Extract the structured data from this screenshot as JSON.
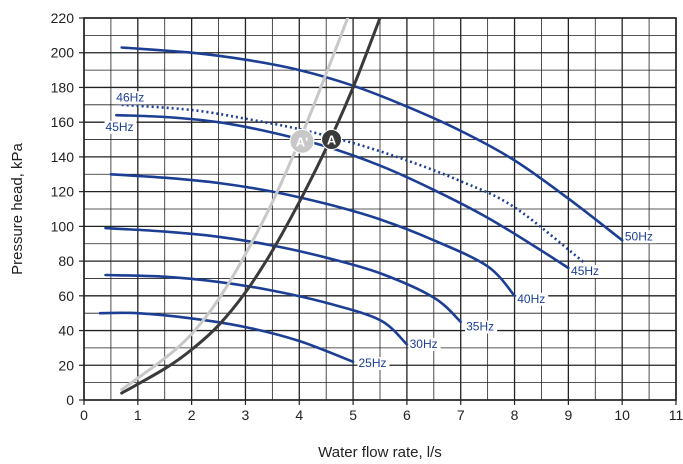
{
  "colors": {
    "grid": "#222222",
    "background": "#ffffff",
    "pump_curve": "#1c3f94",
    "system_curve_a": "#3a3a3a",
    "system_curve_a_prime": "#c8c8c8",
    "label_text": "#1c3f94"
  },
  "chart_data": {
    "type": "line",
    "xlabel": "Water flow rate, l/s",
    "ylabel": "Pressure head, kPa",
    "xlim": [
      0,
      11
    ],
    "ylim": [
      0,
      220
    ],
    "x_ticks": [
      "0",
      "1",
      "2",
      "3",
      "4",
      "5",
      "6",
      "7",
      "8",
      "9",
      "10",
      "11"
    ],
    "y_ticks": [
      "0",
      "20",
      "40",
      "60",
      "80",
      "100",
      "120",
      "140",
      "160",
      "180",
      "200",
      "220"
    ],
    "grid": true,
    "minor_grid_x": 0.5,
    "minor_grid_y": 10,
    "series": [
      {
        "name": "50Hz",
        "kind": "pump",
        "style": "solid",
        "points": [
          [
            0.7,
            203
          ],
          [
            2.0,
            200
          ],
          [
            3.0,
            196
          ],
          [
            4.0,
            190
          ],
          [
            5.0,
            181
          ],
          [
            6.0,
            169
          ],
          [
            7.0,
            155
          ],
          [
            8.0,
            138
          ],
          [
            9.0,
            116
          ],
          [
            10.0,
            92
          ]
        ]
      },
      {
        "name": "46Hz",
        "kind": "pump",
        "style": "dotted",
        "points": [
          [
            0.7,
            170
          ],
          [
            2.0,
            167
          ],
          [
            3.0,
            162
          ],
          [
            4.0,
            156
          ],
          [
            5.0,
            148
          ],
          [
            6.0,
            138
          ],
          [
            7.0,
            126
          ],
          [
            8.0,
            111
          ],
          [
            9.3,
            79
          ]
        ]
      },
      {
        "name": "45Hz",
        "kind": "pump",
        "style": "solid",
        "points": [
          [
            0.6,
            164
          ],
          [
            1.5,
            163
          ],
          [
            2.5,
            160
          ],
          [
            3.5,
            154
          ],
          [
            4.5,
            146
          ],
          [
            5.5,
            135
          ],
          [
            6.5,
            121
          ],
          [
            7.5,
            105
          ],
          [
            8.5,
            86
          ],
          [
            9.0,
            76
          ]
        ]
      },
      {
        "name": "40Hz",
        "kind": "pump",
        "style": "solid",
        "points": [
          [
            0.5,
            130
          ],
          [
            1.5,
            128
          ],
          [
            2.5,
            125
          ],
          [
            3.5,
            120
          ],
          [
            4.5,
            113
          ],
          [
            5.5,
            104
          ],
          [
            6.5,
            92
          ],
          [
            7.5,
            77
          ],
          [
            8.0,
            60
          ]
        ]
      },
      {
        "name": "35Hz",
        "kind": "pump",
        "style": "solid",
        "points": [
          [
            0.4,
            99
          ],
          [
            1.5,
            97
          ],
          [
            2.5,
            94
          ],
          [
            3.5,
            89
          ],
          [
            4.5,
            82
          ],
          [
            5.5,
            73
          ],
          [
            6.5,
            59
          ],
          [
            7.0,
            45
          ]
        ]
      },
      {
        "name": "30Hz",
        "kind": "pump",
        "style": "solid",
        "points": [
          [
            0.4,
            72
          ],
          [
            1.5,
            71
          ],
          [
            2.5,
            68
          ],
          [
            3.5,
            63
          ],
          [
            4.5,
            56
          ],
          [
            5.5,
            46
          ],
          [
            6.0,
            32
          ]
        ]
      },
      {
        "name": "25Hz",
        "kind": "pump",
        "style": "solid",
        "points": [
          [
            0.3,
            50
          ],
          [
            1.0,
            50
          ],
          [
            2.0,
            47
          ],
          [
            3.0,
            42
          ],
          [
            4.0,
            34
          ],
          [
            5.0,
            22
          ]
        ]
      },
      {
        "kind": "system",
        "style": "solid",
        "color_key": "system_curve_a",
        "points": [
          [
            0.7,
            4
          ],
          [
            1.5,
            18
          ],
          [
            2.0,
            29
          ],
          [
            2.5,
            43
          ],
          [
            3.0,
            62
          ],
          [
            3.5,
            86
          ],
          [
            4.0,
            114
          ],
          [
            4.5,
            145
          ],
          [
            5.0,
            180
          ],
          [
            5.5,
            220
          ]
        ]
      },
      {
        "kind": "system",
        "style": "solid",
        "color_key": "system_curve_a_prime",
        "points": [
          [
            0.7,
            6
          ],
          [
            1.5,
            24
          ],
          [
            2.0,
            38
          ],
          [
            2.5,
            58
          ],
          [
            3.0,
            84
          ],
          [
            3.5,
            114
          ],
          [
            4.0,
            149
          ],
          [
            4.5,
            188
          ],
          [
            4.9,
            220
          ]
        ]
      }
    ],
    "operating_points": [
      {
        "label": "A",
        "x": 4.6,
        "y": 150,
        "color_key": "system_curve_a"
      },
      {
        "label": "A'",
        "x": 4.05,
        "y": 149,
        "color_key": "system_curve_a_prime"
      }
    ],
    "series_labels": [
      {
        "text": "50Hz",
        "x": 10.05,
        "y": 92
      },
      {
        "text": "46Hz",
        "x": 0.6,
        "y": 172
      },
      {
        "text": "45Hz",
        "x": 0.4,
        "y": 155
      },
      {
        "text": "45Hz",
        "x": 9.05,
        "y": 72
      },
      {
        "text": "40Hz",
        "x": 8.05,
        "y": 56
      },
      {
        "text": "35Hz",
        "x": 7.1,
        "y": 40
      },
      {
        "text": "30Hz",
        "x": 6.05,
        "y": 30
      },
      {
        "text": "25Hz",
        "x": 5.1,
        "y": 19
      }
    ]
  }
}
